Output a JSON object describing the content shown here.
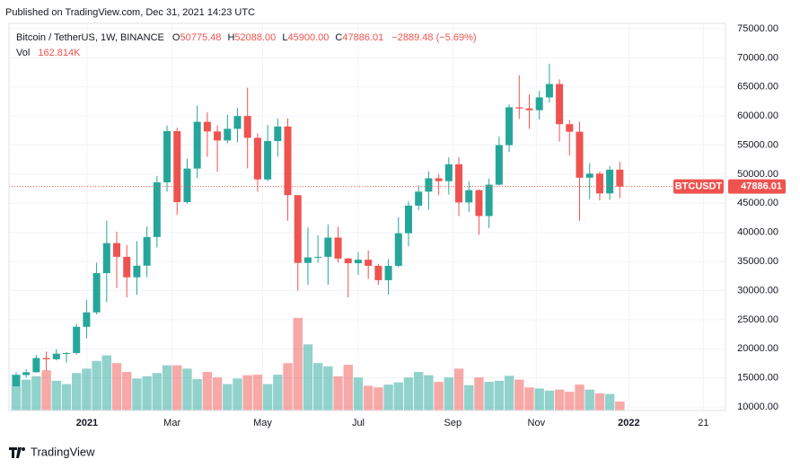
{
  "published": "Published on TradingView.com, Dec 31, 2021 14:23 UTC",
  "brand": "TradingView",
  "chart_data": {
    "type": "candlestick",
    "title": "Bitcoin / TetherUS, 1W, BINANCE",
    "symbol": "BTCUSDT",
    "ohlc_labels": [
      "O",
      "H",
      "L",
      "C"
    ],
    "ohlc_values": [
      "50775.48",
      "52088.00",
      "45900.00",
      "47886.01"
    ],
    "change": "−2889.48 (−5.69%)",
    "up_color": "#26a69a",
    "down_color": "#ef5350",
    "open": [
      13550,
      15480,
      15960,
      18400,
      18190,
      19150,
      19270,
      23770,
      26250,
      33000,
      38150,
      35800,
      32280,
      34280,
      39200,
      48600,
      57400,
      45200,
      50970,
      59000,
      57350,
      55800,
      57800,
      60000,
      56250,
      49100,
      55700,
      58200,
      46400,
      34750,
      35700,
      35800,
      39100,
      35500,
      34700,
      35300,
      34250,
      31780,
      34250,
      39850,
      44600,
      47000,
      49300,
      48800,
      51700,
      45150,
      47250,
      42800,
      48200,
      55000,
      61500,
      61300,
      61000,
      63200,
      65500,
      58600,
      57300,
      49400,
      50100,
      46700,
      50775.48
    ],
    "high": [
      15960,
      16480,
      18950,
      19500,
      19915,
      19420,
      24300,
      28400,
      34800,
      42000,
      40100,
      37850,
      38500,
      41000,
      49700,
      58350,
      58000,
      52650,
      61800,
      60630,
      58400,
      60200,
      61400,
      64850,
      57000,
      58450,
      59600,
      59600,
      46400,
      40850,
      39500,
      41330,
      41000,
      35600,
      36600,
      36900,
      34600,
      35400,
      42600,
      45300,
      48100,
      50500,
      50000,
      52900,
      52900,
      48800,
      47400,
      49250,
      56500,
      62000,
      67000,
      63700,
      64300,
      69000,
      66300,
      59300,
      59000,
      51900,
      50500,
      51400,
      52088
    ],
    "low": [
      13525,
      15075,
      15900,
      16200,
      18000,
      17600,
      19000,
      21800,
      25900,
      28000,
      30400,
      28850,
      29250,
      32300,
      37400,
      47000,
      43000,
      44950,
      49300,
      53000,
      50400,
      55300,
      55500,
      51000,
      47000,
      48800,
      53000,
      42000,
      30000,
      31000,
      34800,
      31000,
      34800,
      28800,
      32700,
      32000,
      31000,
      29300,
      34000,
      37600,
      43800,
      43900,
      46400,
      46500,
      42800,
      43500,
      39600,
      40750,
      48050,
      53800,
      59500,
      57800,
      59400,
      62300,
      55600,
      53250,
      42000,
      45700,
      45500,
      45600,
      45900
    ],
    "close": [
      15480,
      15960,
      18400,
      18190,
      19150,
      19270,
      23770,
      26250,
      33000,
      38150,
      35800,
      32280,
      34280,
      39200,
      48600,
      57400,
      45200,
      50970,
      59000,
      57350,
      55800,
      57800,
      60000,
      56250,
      49100,
      55700,
      58200,
      46400,
      34750,
      35700,
      35800,
      39100,
      35500,
      34700,
      35300,
      34250,
      31780,
      34250,
      39850,
      44600,
      47000,
      49300,
      48800,
      51700,
      45150,
      47250,
      42800,
      48200,
      55000,
      61500,
      61300,
      61000,
      63200,
      65500,
      58600,
      57300,
      49400,
      50100,
      46700,
      50775.48,
      47886.01
    ],
    "volume": {
      "name": "Vol",
      "last_value_label": "162.814K",
      "ylim": [
        0,
        2200
      ],
      "values": [
        650,
        560,
        620,
        730,
        540,
        480,
        680,
        760,
        900,
        1000,
        860,
        700,
        580,
        620,
        680,
        820,
        820,
        760,
        570,
        700,
        600,
        480,
        580,
        640,
        650,
        480,
        650,
        860,
        1680,
        1200,
        860,
        800,
        620,
        830,
        600,
        450,
        420,
        470,
        510,
        600,
        700,
        640,
        520,
        600,
        760,
        460,
        600,
        520,
        540,
        630,
        560,
        420,
        400,
        360,
        380,
        340,
        470,
        380,
        310,
        300,
        162.814
      ]
    },
    "xlim": [
      -0.71,
      70.5
    ],
    "xticks": [
      {
        "value": 7.05,
        "label": "2021"
      },
      {
        "value": 15.5,
        "label": "Mar"
      },
      {
        "value": 24.5,
        "label": "May"
      },
      {
        "value": 34.0,
        "label": "Jul"
      },
      {
        "value": 43.4,
        "label": "Sep"
      },
      {
        "value": 51.7,
        "label": "Nov"
      },
      {
        "value": 60.9,
        "label": "2022"
      },
      {
        "value": 68.3,
        "label": "21"
      }
    ],
    "ylim": [
      10000,
      75000
    ],
    "yticks": [
      {
        "value": 10000,
        "label": "10000.00"
      },
      {
        "value": 15000,
        "label": "15000.00"
      },
      {
        "value": 20000,
        "label": "20000.00"
      },
      {
        "value": 25000,
        "label": "25000.00"
      },
      {
        "value": 30000,
        "label": "30000.00"
      },
      {
        "value": 35000,
        "label": "35000.00"
      },
      {
        "value": 40000,
        "label": "40000.00"
      },
      {
        "value": 45000,
        "label": "45000.00"
      },
      {
        "value": 50000,
        "label": "50000.00"
      },
      {
        "value": 55000,
        "label": "55000.00"
      },
      {
        "value": 60000,
        "label": "60000.00"
      },
      {
        "value": 65000,
        "label": "65000.00"
      },
      {
        "value": 70000,
        "label": "70000.00"
      },
      {
        "value": 75000,
        "label": "75000.00"
      }
    ],
    "grid": true
  }
}
